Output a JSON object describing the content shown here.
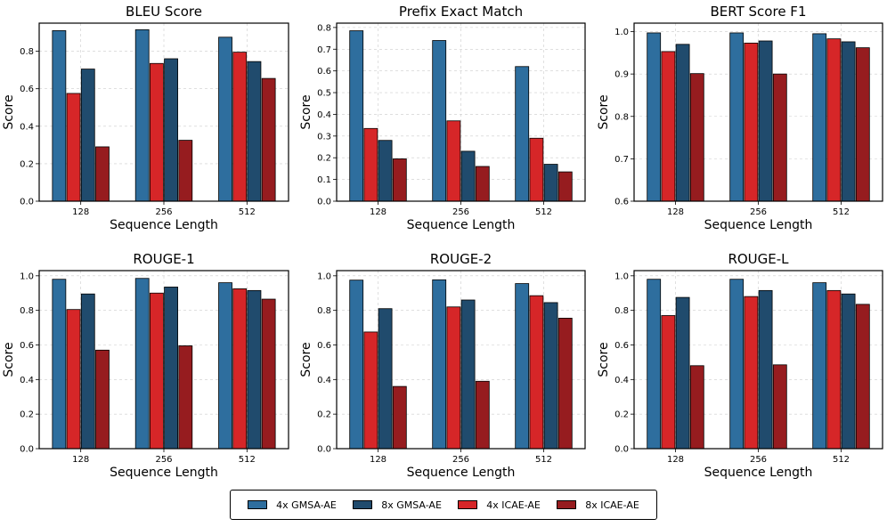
{
  "legend": {
    "items": [
      {
        "label": "4x GMSA-AE",
        "color": "#2E6E9E"
      },
      {
        "label": "8x GMSA-AE",
        "color": "#204B6D"
      },
      {
        "label": "4x ICAE-AE",
        "color": "#D62628"
      },
      {
        "label": "8x ICAE-AE",
        "color": "#961C1F"
      }
    ]
  },
  "chart_data": [
    {
      "type": "bar",
      "title": "BLEU Score",
      "xlabel": "Sequence Length",
      "ylabel": "Score",
      "categories": [
        "128",
        "256",
        "512"
      ],
      "ylim": [
        0,
        0.95
      ],
      "yticks": [
        0.0,
        0.2,
        0.4,
        0.6,
        0.8
      ],
      "ytick_labels": [
        "0.0",
        "0.2",
        "0.4",
        "0.6",
        "0.8"
      ],
      "series": [
        {
          "name": "4x GMSA-AE",
          "values": [
            0.91,
            0.915,
            0.875
          ]
        },
        {
          "name": "8x GMSA-AE",
          "values": [
            0.705,
            0.76,
            0.745
          ]
        },
        {
          "name": "4x ICAE-AE",
          "values": [
            0.575,
            0.735,
            0.795
          ]
        },
        {
          "name": "8x ICAE-AE",
          "values": [
            0.29,
            0.325,
            0.655
          ]
        }
      ]
    },
    {
      "type": "bar",
      "title": "Prefix Exact Match",
      "xlabel": "Sequence Length",
      "ylabel": "Score",
      "categories": [
        "128",
        "256",
        "512"
      ],
      "ylim": [
        0,
        0.82
      ],
      "yticks": [
        0.0,
        0.1,
        0.2,
        0.3,
        0.4,
        0.5,
        0.6,
        0.7,
        0.8
      ],
      "ytick_labels": [
        "0.0",
        "0.1",
        "0.2",
        "0.3",
        "0.4",
        "0.5",
        "0.6",
        "0.7",
        "0.8"
      ],
      "series": [
        {
          "name": "4x GMSA-AE",
          "values": [
            0.785,
            0.74,
            0.62
          ]
        },
        {
          "name": "8x GMSA-AE",
          "values": [
            0.28,
            0.23,
            0.17
          ]
        },
        {
          "name": "4x ICAE-AE",
          "values": [
            0.335,
            0.37,
            0.29
          ]
        },
        {
          "name": "8x ICAE-AE",
          "values": [
            0.195,
            0.16,
            0.135
          ]
        }
      ]
    },
    {
      "type": "bar",
      "title": "BERT Score F1",
      "xlabel": "Sequence Length",
      "ylabel": "Score",
      "categories": [
        "128",
        "256",
        "512"
      ],
      "ylim": [
        0.6,
        1.02
      ],
      "yticks": [
        0.6,
        0.7,
        0.8,
        0.9,
        1.0
      ],
      "ytick_labels": [
        "0.6",
        "0.7",
        "0.8",
        "0.9",
        "1.0"
      ],
      "series": [
        {
          "name": "4x GMSA-AE",
          "values": [
            0.997,
            0.997,
            0.995
          ]
        },
        {
          "name": "8x GMSA-AE",
          "values": [
            0.97,
            0.978,
            0.976
          ]
        },
        {
          "name": "4x ICAE-AE",
          "values": [
            0.953,
            0.973,
            0.983
          ]
        },
        {
          "name": "8x ICAE-AE",
          "values": [
            0.901,
            0.9,
            0.962
          ]
        }
      ]
    },
    {
      "type": "bar",
      "title": "ROUGE-1",
      "xlabel": "Sequence Length",
      "ylabel": "Score",
      "categories": [
        "128",
        "256",
        "512"
      ],
      "ylim": [
        0,
        1.03
      ],
      "yticks": [
        0.0,
        0.2,
        0.4,
        0.6,
        0.8,
        1.0
      ],
      "ytick_labels": [
        "0.0",
        "0.2",
        "0.4",
        "0.6",
        "0.8",
        "1.0"
      ],
      "series": [
        {
          "name": "4x GMSA-AE",
          "values": [
            0.98,
            0.985,
            0.96
          ]
        },
        {
          "name": "8x GMSA-AE",
          "values": [
            0.895,
            0.935,
            0.915
          ]
        },
        {
          "name": "4x ICAE-AE",
          "values": [
            0.805,
            0.9,
            0.925
          ]
        },
        {
          "name": "8x ICAE-AE",
          "values": [
            0.57,
            0.595,
            0.865
          ]
        }
      ]
    },
    {
      "type": "bar",
      "title": "ROUGE-2",
      "xlabel": "Sequence Length",
      "ylabel": "Score",
      "categories": [
        "128",
        "256",
        "512"
      ],
      "ylim": [
        0,
        1.03
      ],
      "yticks": [
        0.0,
        0.2,
        0.4,
        0.6,
        0.8,
        1.0
      ],
      "ytick_labels": [
        "0.0",
        "0.2",
        "0.4",
        "0.6",
        "0.8",
        "1.0"
      ],
      "series": [
        {
          "name": "4x GMSA-AE",
          "values": [
            0.975,
            0.977,
            0.955
          ]
        },
        {
          "name": "8x GMSA-AE",
          "values": [
            0.81,
            0.86,
            0.845
          ]
        },
        {
          "name": "4x ICAE-AE",
          "values": [
            0.675,
            0.82,
            0.885
          ]
        },
        {
          "name": "8x ICAE-AE",
          "values": [
            0.36,
            0.39,
            0.755
          ]
        }
      ]
    },
    {
      "type": "bar",
      "title": "ROUGE-L",
      "xlabel": "Sequence Length",
      "ylabel": "Score",
      "categories": [
        "128",
        "256",
        "512"
      ],
      "ylim": [
        0,
        1.03
      ],
      "yticks": [
        0.0,
        0.2,
        0.4,
        0.6,
        0.8,
        1.0
      ],
      "ytick_labels": [
        "0.0",
        "0.2",
        "0.4",
        "0.6",
        "0.8",
        "1.0"
      ],
      "series": [
        {
          "name": "4x GMSA-AE",
          "values": [
            0.98,
            0.98,
            0.96
          ]
        },
        {
          "name": "8x GMSA-AE",
          "values": [
            0.875,
            0.915,
            0.895
          ]
        },
        {
          "name": "4x ICAE-AE",
          "values": [
            0.77,
            0.88,
            0.915
          ]
        },
        {
          "name": "8x ICAE-AE",
          "values": [
            0.48,
            0.485,
            0.835
          ]
        }
      ]
    }
  ]
}
